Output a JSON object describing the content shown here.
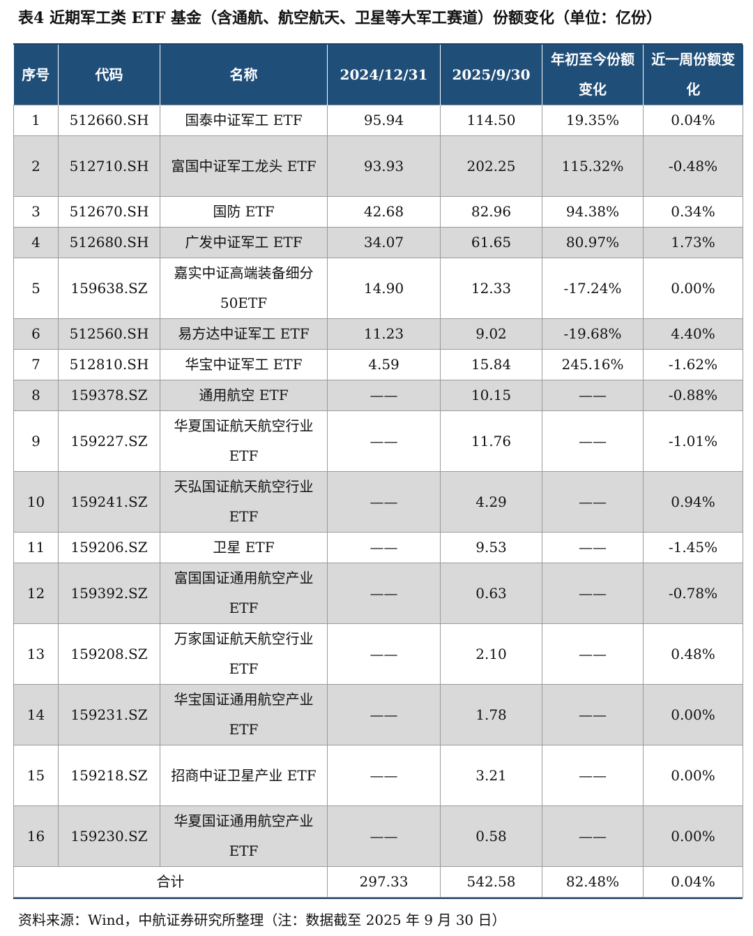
{
  "title": "表4  近期军工类 ETF 基金（含通航、航空航天、卫星等大军工赛道）份额变化（单位：亿份）",
  "headers": [
    "序号",
    "代码",
    "名称",
    "2024/12/31",
    "2025/9/30",
    "年初至今份额变化",
    "近一周份额变化"
  ],
  "rows": [
    {
      "no": "1",
      "code": "512660.SH",
      "name": "国泰中证军工 ETF",
      "v2024": "95.94",
      "v2025": "114.50",
      "ytd": "19.35%",
      "week": "0.04%"
    },
    {
      "no": "2",
      "code": "512710.SH",
      "name": "富国中证军工龙头 ETF",
      "v2024": "93.93",
      "v2025": "202.25",
      "ytd": "115.32%",
      "week": "-0.48%"
    },
    {
      "no": "3",
      "code": "512670.SH",
      "name": "国防 ETF",
      "v2024": "42.68",
      "v2025": "82.96",
      "ytd": "94.38%",
      "week": "0.34%"
    },
    {
      "no": "4",
      "code": "512680.SH",
      "name": "广发中证军工 ETF",
      "v2024": "34.07",
      "v2025": "61.65",
      "ytd": "80.97%",
      "week": "1.73%"
    },
    {
      "no": "5",
      "code": "159638.SZ",
      "name": "嘉实中证高端装备细分 50ETF",
      "v2024": "14.90",
      "v2025": "12.33",
      "ytd": "-17.24%",
      "week": "0.00%"
    },
    {
      "no": "6",
      "code": "512560.SH",
      "name": "易方达中证军工 ETF",
      "v2024": "11.23",
      "v2025": "9.02",
      "ytd": "-19.68%",
      "week": "4.40%"
    },
    {
      "no": "7",
      "code": "512810.SH",
      "name": "华宝中证军工 ETF",
      "v2024": "4.59",
      "v2025": "15.84",
      "ytd": "245.16%",
      "week": "-1.62%"
    },
    {
      "no": "8",
      "code": "159378.SZ",
      "name": "通用航空 ETF",
      "v2024": "——",
      "v2025": "10.15",
      "ytd": "——",
      "week": "-0.88%"
    },
    {
      "no": "9",
      "code": "159227.SZ",
      "name": "华夏国证航天航空行业 ETF",
      "v2024": "——",
      "v2025": "11.76",
      "ytd": "——",
      "week": "-1.01%"
    },
    {
      "no": "10",
      "code": "159241.SZ",
      "name": "天弘国证航天航空行业 ETF",
      "v2024": "——",
      "v2025": "4.29",
      "ytd": "——",
      "week": "0.94%"
    },
    {
      "no": "11",
      "code": "159206.SZ",
      "name": "卫星 ETF",
      "v2024": "——",
      "v2025": "9.53",
      "ytd": "——",
      "week": "-1.45%"
    },
    {
      "no": "12",
      "code": "159392.SZ",
      "name": "富国国证通用航空产业 ETF",
      "v2024": "——",
      "v2025": "0.63",
      "ytd": "——",
      "week": "-0.78%"
    },
    {
      "no": "13",
      "code": "159208.SZ",
      "name": "万家国证航天航空行业 ETF",
      "v2024": "——",
      "v2025": "2.10",
      "ytd": "——",
      "week": "0.48%"
    },
    {
      "no": "14",
      "code": "159231.SZ",
      "name": "华宝国证通用航空产业 ETF",
      "v2024": "——",
      "v2025": "1.78",
      "ytd": "——",
      "week": "0.00%"
    },
    {
      "no": "15",
      "code": "159218.SZ",
      "name": "招商中证卫星产业 ETF",
      "v2024": "——",
      "v2025": "3.21",
      "ytd": "——",
      "week": "0.00%"
    },
    {
      "no": "16",
      "code": "159230.SZ",
      "name": "华夏国证通用航空产业 ETF",
      "v2024": "——",
      "v2025": "0.58",
      "ytd": "——",
      "week": "0.00%"
    }
  ],
  "total": {
    "label": "合计",
    "v2024": "297.33",
    "v2025": "542.58",
    "ytd": "82.48%",
    "week": "0.04%"
  },
  "source": "资料来源：Wind，中航证券研究所整理（注：数据截至 2025 年 9 月 30 日）"
}
